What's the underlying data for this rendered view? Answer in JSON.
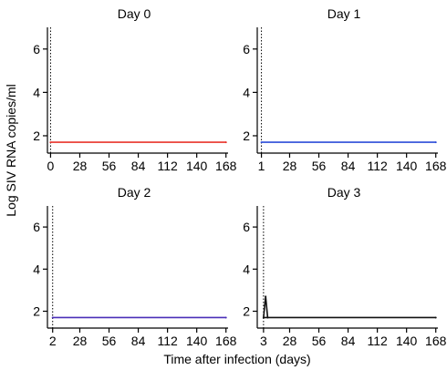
{
  "figure": {
    "ylabel": "Log SIV RNA copies/ml",
    "xlabel": "Time after infection (days)"
  },
  "chart_data": [
    {
      "type": "line",
      "title": "Day 0",
      "ylim": [
        1.2,
        7.0
      ],
      "yticks": [
        2,
        4,
        6
      ],
      "xticks": [
        0,
        28,
        56,
        84,
        112,
        140,
        168
      ],
      "xlim": [
        -3,
        170
      ],
      "vline": 0,
      "series": [
        {
          "color": "#e8332a",
          "x": [
            0,
            168
          ],
          "y": [
            1.7,
            1.7
          ]
        }
      ]
    },
    {
      "type": "line",
      "title": "Day 1",
      "ylim": [
        1.2,
        7.0
      ],
      "yticks": [
        2,
        4,
        6
      ],
      "xticks": [
        1,
        28,
        56,
        84,
        112,
        140,
        168
      ],
      "xlim": [
        -3,
        170
      ],
      "vline": 1,
      "series": [
        {
          "color": "#2b4bd8",
          "x": [
            1,
            168
          ],
          "y": [
            1.7,
            1.7
          ]
        }
      ]
    },
    {
      "type": "line",
      "title": "Day 2",
      "ylim": [
        1.2,
        7.0
      ],
      "yticks": [
        2,
        4,
        6
      ],
      "xticks": [
        2,
        28,
        56,
        84,
        112,
        140,
        168
      ],
      "xlim": [
        -3,
        170
      ],
      "vline": 2,
      "series": [
        {
          "color": "#4a2fb8",
          "x": [
            2,
            168
          ],
          "y": [
            1.7,
            1.7
          ]
        }
      ]
    },
    {
      "type": "line",
      "title": "Day 3",
      "ylim": [
        1.2,
        7.0
      ],
      "yticks": [
        2,
        4,
        6
      ],
      "xticks": [
        3,
        28,
        56,
        84,
        112,
        140,
        168
      ],
      "xlim": [
        -3,
        170
      ],
      "vline": 3,
      "series": [
        {
          "color": "#111111",
          "x": [
            3,
            168
          ],
          "y": [
            1.7,
            1.7
          ]
        },
        {
          "color": "#111111",
          "x": [
            3,
            5,
            7
          ],
          "y": [
            1.7,
            2.7,
            1.7
          ]
        }
      ]
    }
  ]
}
